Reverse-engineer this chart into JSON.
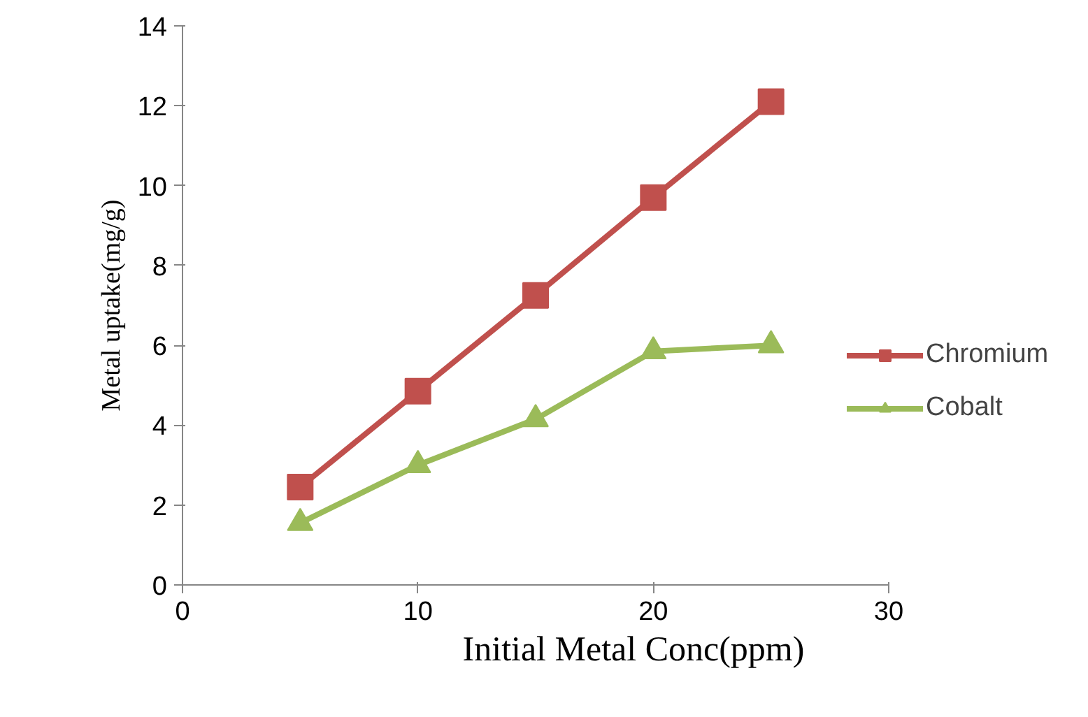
{
  "chart_data": {
    "type": "line",
    "xlabel": "Initial Metal Conc(ppm)",
    "ylabel": "Metal uptake(mg/g)",
    "x": [
      5,
      10,
      15,
      20,
      25
    ],
    "series": [
      {
        "name": "Chromium",
        "color": "#c0504d",
        "marker": "square",
        "values": [
          2.45,
          4.85,
          7.25,
          9.7,
          12.1
        ]
      },
      {
        "name": "Cobalt",
        "color": "#9bbb59",
        "marker": "triangle",
        "values": [
          1.55,
          3.0,
          4.15,
          5.85,
          6.0
        ]
      }
    ],
    "xlim": [
      0,
      30
    ],
    "xticks": [
      0,
      10,
      20,
      30
    ],
    "ylim": [
      0,
      14
    ],
    "yticks": [
      0,
      2,
      4,
      6,
      8,
      10,
      12,
      14
    ],
    "grid": false,
    "legend": "right"
  }
}
